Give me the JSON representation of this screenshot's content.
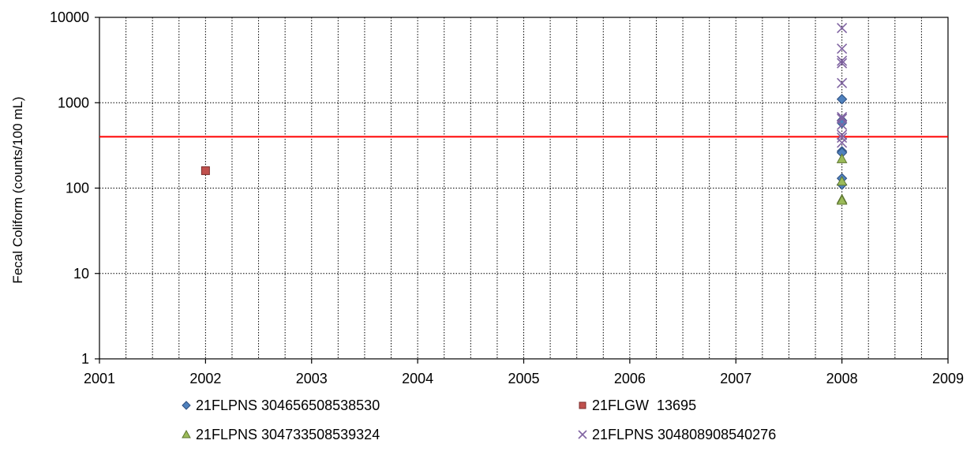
{
  "chart_data": {
    "type": "scatter",
    "title": "",
    "xlabel": "",
    "ylabel": "Fecal Coliform (counts/100 mL)",
    "y_scale": "log",
    "xlim": [
      2001,
      2009
    ],
    "ylim": [
      1,
      10000
    ],
    "x_ticks": [
      "2001",
      "2002",
      "2003",
      "2004",
      "2005",
      "2006",
      "2007",
      "2008",
      "2009"
    ],
    "y_ticks": [
      "1",
      "10",
      "100",
      "1000",
      "10000"
    ],
    "grid": "dotted, vertical every 0.25 year, horizontal at each decade",
    "reference_line": {
      "y": 400,
      "color": "#ff0000"
    },
    "legend_position": "bottom",
    "series": [
      {
        "name": "21FLPNS 304656508538530",
        "marker": "diamond",
        "color": "#4f81bd",
        "points": [
          {
            "x": 2008,
            "y": 1100
          },
          {
            "x": 2008,
            "y": 620
          },
          {
            "x": 2008,
            "y": 580
          },
          {
            "x": 2008,
            "y": 270
          },
          {
            "x": 2008,
            "y": 260
          },
          {
            "x": 2008,
            "y": 130
          },
          {
            "x": 2008,
            "y": 110
          }
        ]
      },
      {
        "name": "21FLGW  13695",
        "marker": "square",
        "color": "#c0504d",
        "points": [
          {
            "x": 2002,
            "y": 160
          }
        ]
      },
      {
        "name": "21FLPNS 304733508539324",
        "marker": "triangle",
        "color": "#9bbb59",
        "points": [
          {
            "x": 2008,
            "y": 220
          },
          {
            "x": 2008,
            "y": 120
          },
          {
            "x": 2008,
            "y": 74
          },
          {
            "x": 2008,
            "y": 72
          }
        ]
      },
      {
        "name": "21FLPNS 304808908540276",
        "marker": "x",
        "color": "#8064a2",
        "points": [
          {
            "x": 2008,
            "y": 7500
          },
          {
            "x": 2008,
            "y": 4300
          },
          {
            "x": 2008,
            "y": 3100
          },
          {
            "x": 2008,
            "y": 2900
          },
          {
            "x": 2008,
            "y": 1700
          },
          {
            "x": 2008,
            "y": 680
          },
          {
            "x": 2008,
            "y": 650
          },
          {
            "x": 2008,
            "y": 550
          },
          {
            "x": 2008,
            "y": 420
          },
          {
            "x": 2008,
            "y": 390
          },
          {
            "x": 2008,
            "y": 340
          }
        ]
      }
    ]
  }
}
